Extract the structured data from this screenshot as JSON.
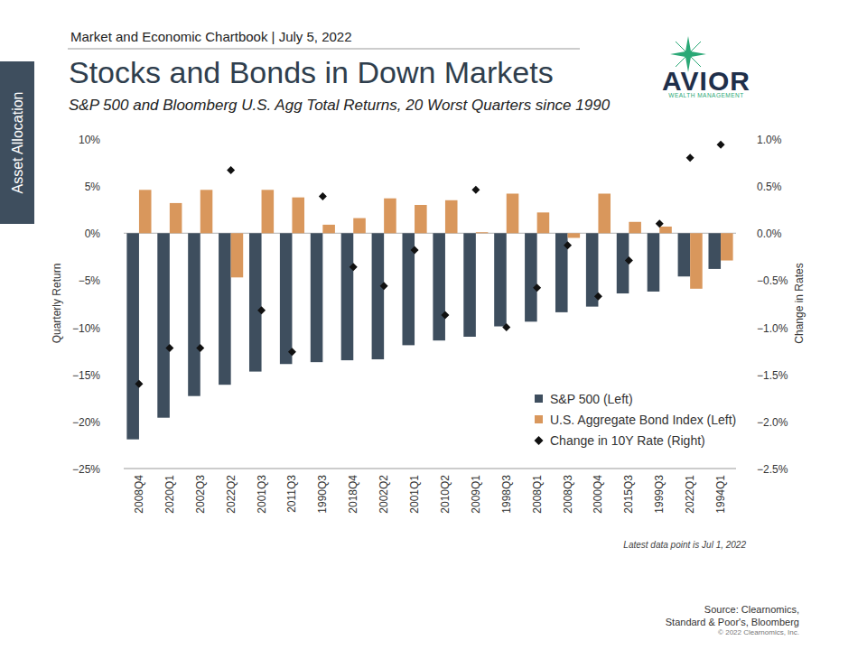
{
  "page": {
    "header": "Market and Economic Chartbook | July 5, 2022",
    "side_tab": "Asset Allocation",
    "logo": {
      "name": "AVIOR",
      "tagline": "WEALTH MANAGEMENT"
    },
    "note": "Latest data point is Jul 1, 2022",
    "source": [
      "Source: Clearnomics,",
      "Standard & Poor's, Bloomberg",
      "© 2022 Clearnomics, Inc."
    ]
  },
  "chart_data": {
    "type": "bar",
    "title": "Stocks and Bonds in Down Markets",
    "subtitle": "S&P 500 and Bloomberg U.S. Agg Total Returns, 20 Worst Quarters since 1990",
    "y_label": "Quarterly Return",
    "y2_label": "Change in Rates",
    "categories": [
      "2008Q4",
      "2020Q1",
      "2002Q3",
      "2022Q2",
      "2001Q3",
      "2011Q3",
      "1990Q3",
      "2018Q4",
      "2002Q2",
      "2001Q1",
      "2010Q2",
      "2009Q1",
      "1998Q3",
      "2008Q1",
      "2008Q3",
      "2000Q4",
      "2015Q3",
      "1999Q3",
      "2022Q1",
      "1994Q1"
    ],
    "series": [
      {
        "name": "S&P 500 (Left)",
        "type": "bar",
        "color": "#3e4e5e",
        "values": [
          -21.9,
          -19.6,
          -17.3,
          -16.1,
          -14.7,
          -13.9,
          -13.7,
          -13.5,
          -13.4,
          -11.9,
          -11.4,
          -11.0,
          -9.9,
          -9.4,
          -8.4,
          -7.8,
          -6.4,
          -6.2,
          -4.6,
          -3.8
        ]
      },
      {
        "name": "U.S. Aggregate Bond Index (Left)",
        "type": "bar",
        "color": "#d9975c",
        "values": [
          4.6,
          3.2,
          4.6,
          -4.7,
          4.6,
          3.8,
          0.9,
          1.6,
          3.7,
          3.0,
          3.5,
          0.1,
          4.2,
          2.2,
          -0.5,
          4.2,
          1.2,
          0.7,
          -5.9,
          -2.9
        ]
      },
      {
        "name": "Change in 10Y Rate (Right)",
        "type": "scatter",
        "axis": "y2",
        "color": "#111111",
        "marker": "diamond",
        "values": [
          -1.6,
          -1.22,
          -1.22,
          0.67,
          -0.82,
          -1.26,
          0.39,
          -0.36,
          -0.56,
          -0.18,
          -0.87,
          0.46,
          -1.0,
          -0.58,
          -0.13,
          -0.67,
          -0.29,
          0.1,
          0.8,
          0.94
        ]
      }
    ],
    "ylim": [
      -25,
      10
    ],
    "yticks": [
      {
        "value": 10,
        "label": "10%"
      },
      {
        "value": 5,
        "label": "5%"
      },
      {
        "value": 0,
        "label": "0%"
      },
      {
        "value": -5,
        "label": "−5%"
      },
      {
        "value": -10,
        "label": "−10%"
      },
      {
        "value": -15,
        "label": "−15%"
      },
      {
        "value": -20,
        "label": "−20%"
      },
      {
        "value": -25,
        "label": "−25%"
      }
    ],
    "y2lim": [
      -2.5,
      1.0
    ],
    "y2ticks": [
      {
        "value": 1.0,
        "label": "1.0%"
      },
      {
        "value": 0.5,
        "label": "0.5%"
      },
      {
        "value": 0,
        "label": "0.0%"
      },
      {
        "value": -0.5,
        "label": "−0.5%"
      },
      {
        "value": -1.0,
        "label": "−1.0%"
      },
      {
        "value": -1.5,
        "label": "−1.5%"
      },
      {
        "value": -2.0,
        "label": "−2.0%"
      },
      {
        "value": -2.5,
        "label": "−2.5%"
      }
    ],
    "grid": false,
    "legend": "lower right"
  }
}
